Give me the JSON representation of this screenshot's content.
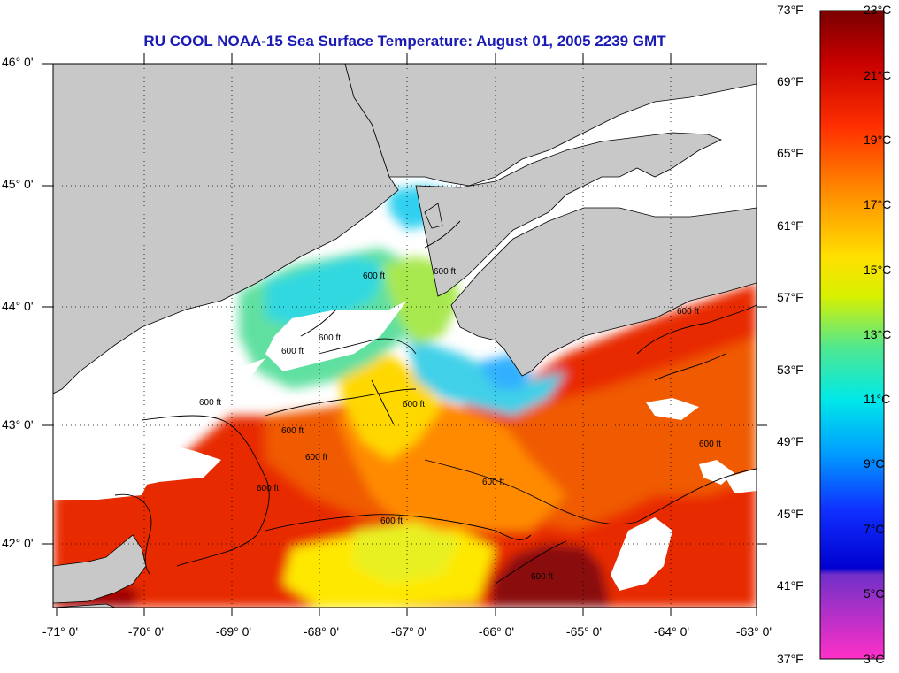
{
  "title": "RU COOL  NOAA-15  Sea Surface Temperature:  August 01, 2005 2239 GMT",
  "lat_labels": [
    "46° 0'",
    "45° 0'",
    "44° 0'",
    "43° 0'",
    "42° 0'"
  ],
  "lon_labels": [
    "-71° 0'",
    "-70° 0'",
    "-69° 0'",
    "-68° 0'",
    "-67° 0'",
    "-66° 0'",
    "-65° 0'",
    "-64° 0'",
    "-63° 0'"
  ],
  "colorbar": {
    "fahrenheit": [
      "73°F",
      "69°F",
      "65°F",
      "61°F",
      "57°F",
      "53°F",
      "49°F",
      "45°F",
      "41°F",
      "37°F"
    ],
    "celsius": [
      "23°C",
      "21°C",
      "19°C",
      "17°C",
      "15°C",
      "13°C",
      "11°C",
      "9°C",
      "7°C",
      "5°C",
      "3°C"
    ]
  },
  "contour_labels": [
    "600 ft",
    "600 ft",
    "600 ft",
    "600 ft",
    "600 ft",
    "600 ft",
    "600 ft",
    "600 ft",
    "600 ft",
    "600 ft",
    "600 ft",
    "600 ft",
    "600 ft",
    "600 ft"
  ],
  "colors": {
    "land": "#c8c8c8",
    "cloud": "#ffffff",
    "title": "#1a1ab4"
  }
}
